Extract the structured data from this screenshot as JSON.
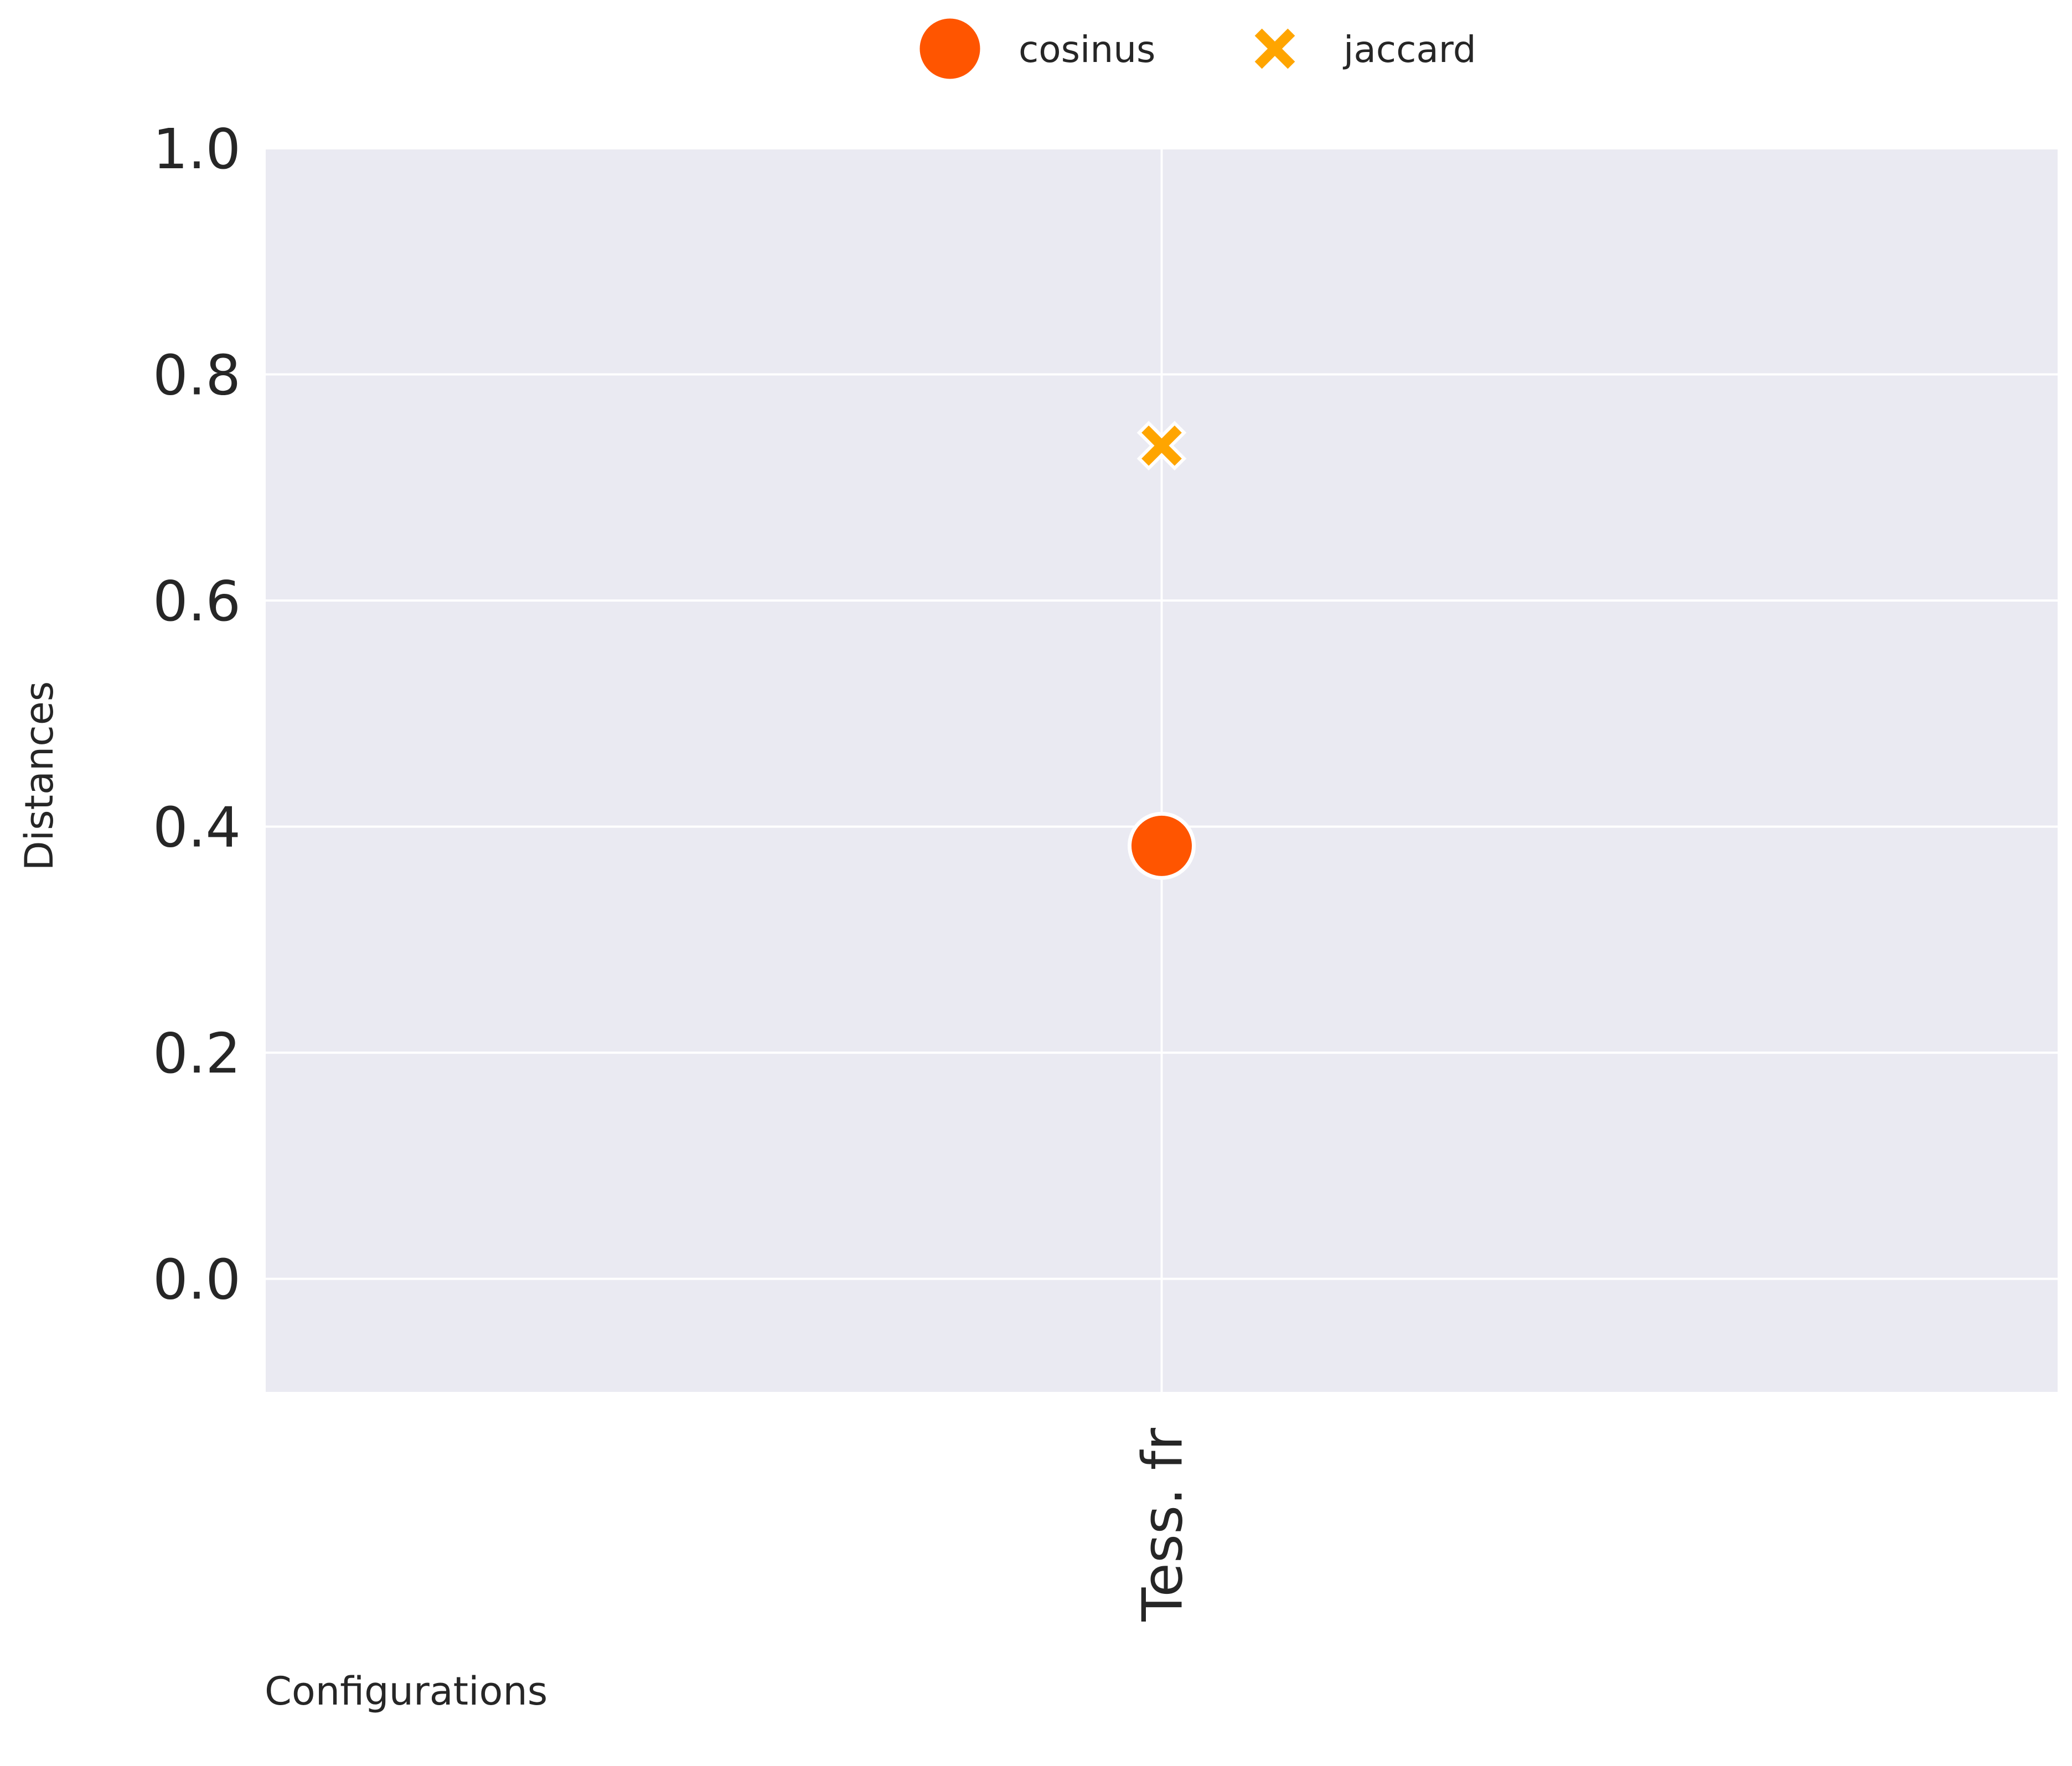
{
  "chart_data": {
    "type": "scatter",
    "categories": [
      "Tess. fr"
    ],
    "series": [
      {
        "name": "cosinus",
        "values": [
          0.383
        ],
        "color": "#ff5500",
        "marker": "circle"
      },
      {
        "name": "jaccard",
        "values": [
          0.737
        ],
        "color": "#ffa500",
        "marker": "x"
      }
    ],
    "xlabel": "Configurations",
    "ylabel": "Distances",
    "ylim": [
      -0.1,
      1.0
    ],
    "yticks": [
      "0.0",
      "0.2",
      "0.4",
      "0.6",
      "0.8",
      "1.0"
    ],
    "grid": true,
    "legend_position": "top-center",
    "background_color": "#eaeaf2",
    "grid_color": "#ffffff"
  }
}
